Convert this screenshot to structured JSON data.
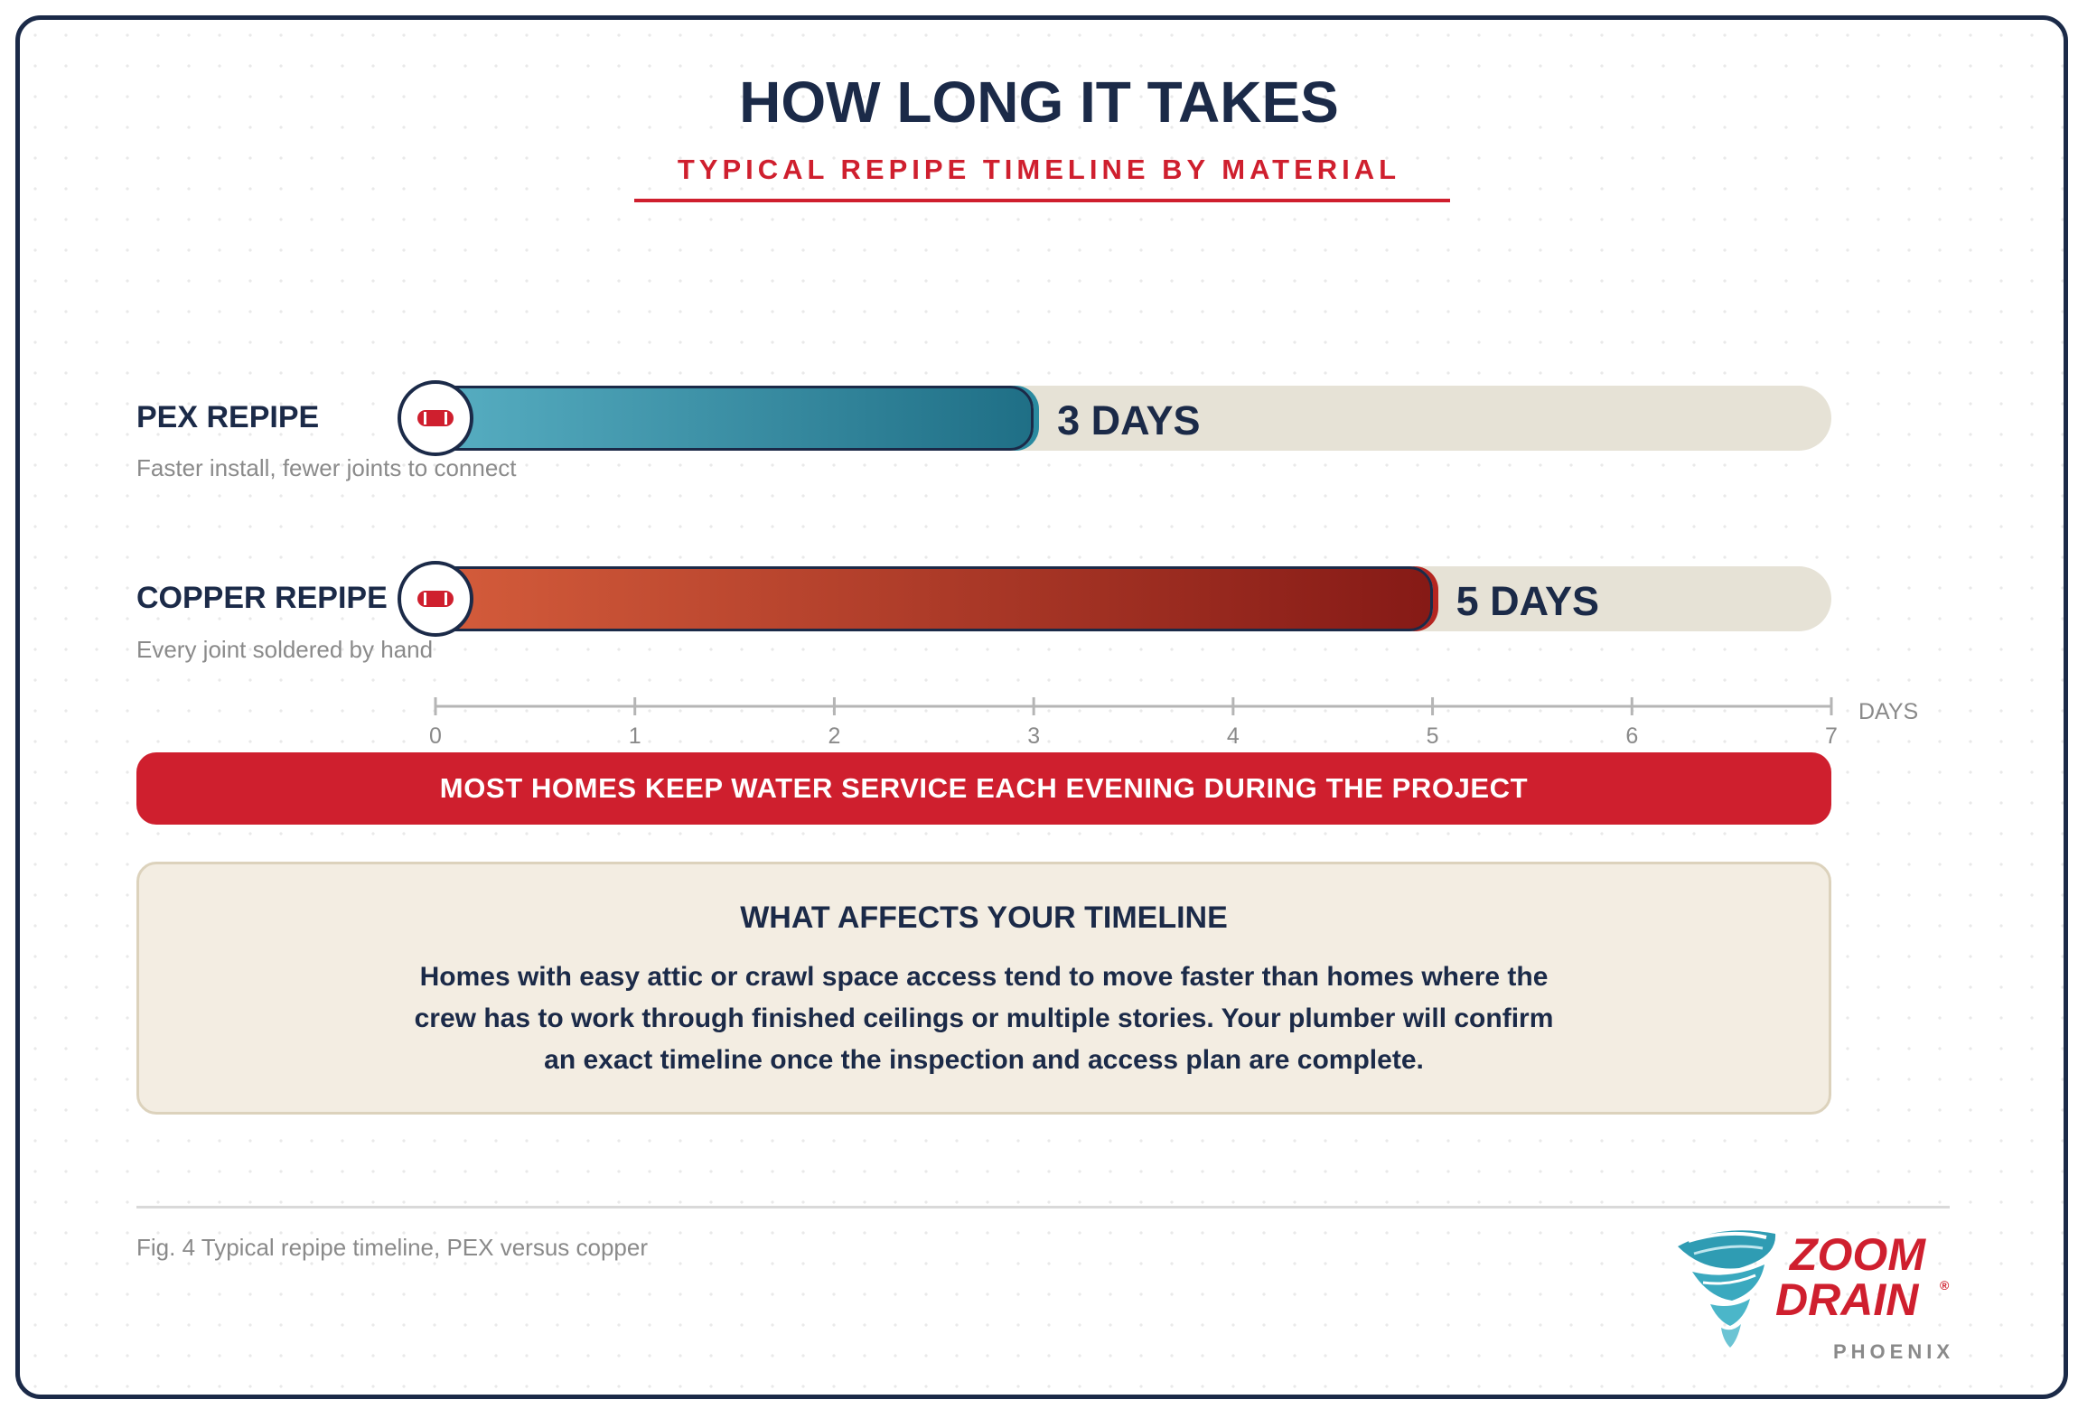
{
  "title": "HOW LONG IT TAKES",
  "subtitle": "TYPICAL REPIPE TIMELINE BY MATERIAL",
  "rows": [
    {
      "label": "PEX REPIPE",
      "note": "Faster install, fewer joints to connect",
      "value_label": "3 DAYS",
      "days": 3
    },
    {
      "label": "COPPER REPIPE",
      "note": "Every joint soldered by hand",
      "value_label": "5 DAYS",
      "days": 5
    }
  ],
  "axis": {
    "unit_label": "DAYS",
    "min": 0,
    "max": 7,
    "ticks": [
      "0",
      "1",
      "2",
      "3",
      "4",
      "5",
      "6",
      "7"
    ]
  },
  "banner": "MOST HOMES KEEP WATER SERVICE EACH EVENING DURING THE PROJECT",
  "info": {
    "title": "WHAT AFFECTS YOUR TIMELINE",
    "body": "Homes with easy attic or crawl space access tend to move faster than homes where the crew has to work through finished ceilings or multiple stories. Your plumber will confirm an exact timeline once the inspection and access plan are complete."
  },
  "caption": "Fig. 4 Typical repipe timeline, PEX versus copper",
  "brand": {
    "line1": "ZOOM",
    "line2": "DRAIN",
    "mark": "®",
    "location": "PHOENIX",
    "icon": "tornado-icon"
  },
  "colors": {
    "navy": "#1b2a48",
    "red": "#cf1f2e",
    "pex": "#2a8aa0",
    "copper": "#b42520",
    "track": "#e6e2d6",
    "panel": "#f3ede2"
  },
  "chart_data": {
    "type": "bar",
    "orientation": "horizontal",
    "title": "HOW LONG IT TAKES",
    "subtitle": "TYPICAL REPIPE TIMELINE BY MATERIAL",
    "categories": [
      "PEX REPIPE",
      "COPPER REPIPE"
    ],
    "values": [
      3,
      5
    ],
    "xlabel": "DAYS",
    "xlim": [
      0,
      7
    ],
    "grid": false
  }
}
